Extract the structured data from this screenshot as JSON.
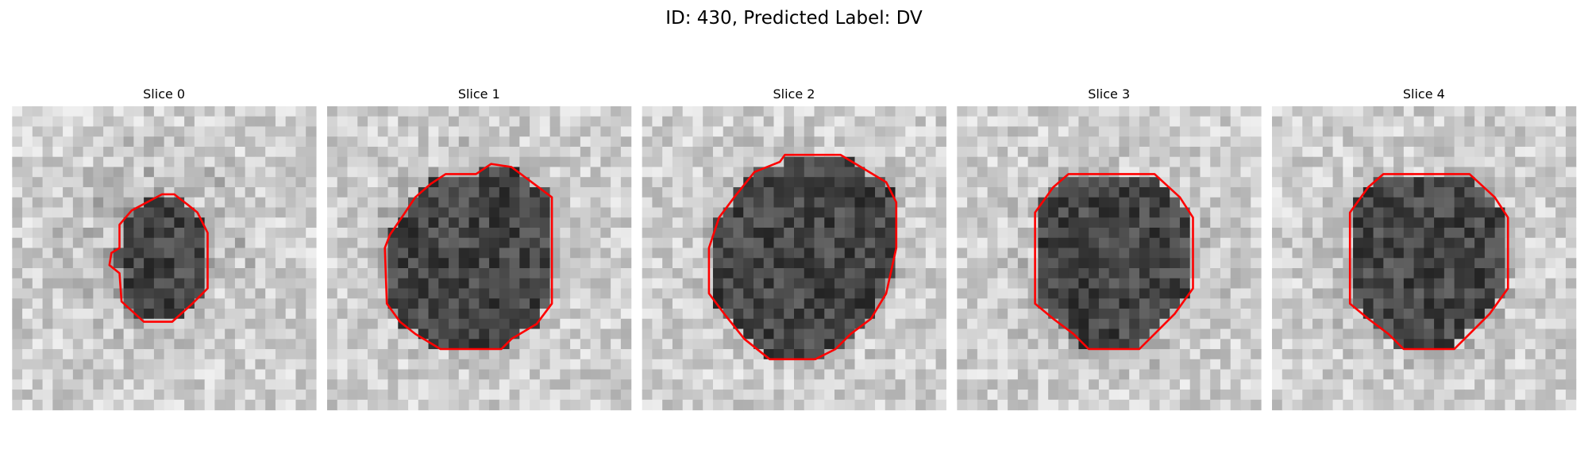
{
  "title": "ID: 430, Predicted Label: DV",
  "panels": [
    {
      "title": "Slice 0"
    },
    {
      "title": "Slice 1"
    },
    {
      "title": "Slice 2"
    },
    {
      "title": "Slice 3"
    },
    {
      "title": "Slice 4"
    }
  ]
}
